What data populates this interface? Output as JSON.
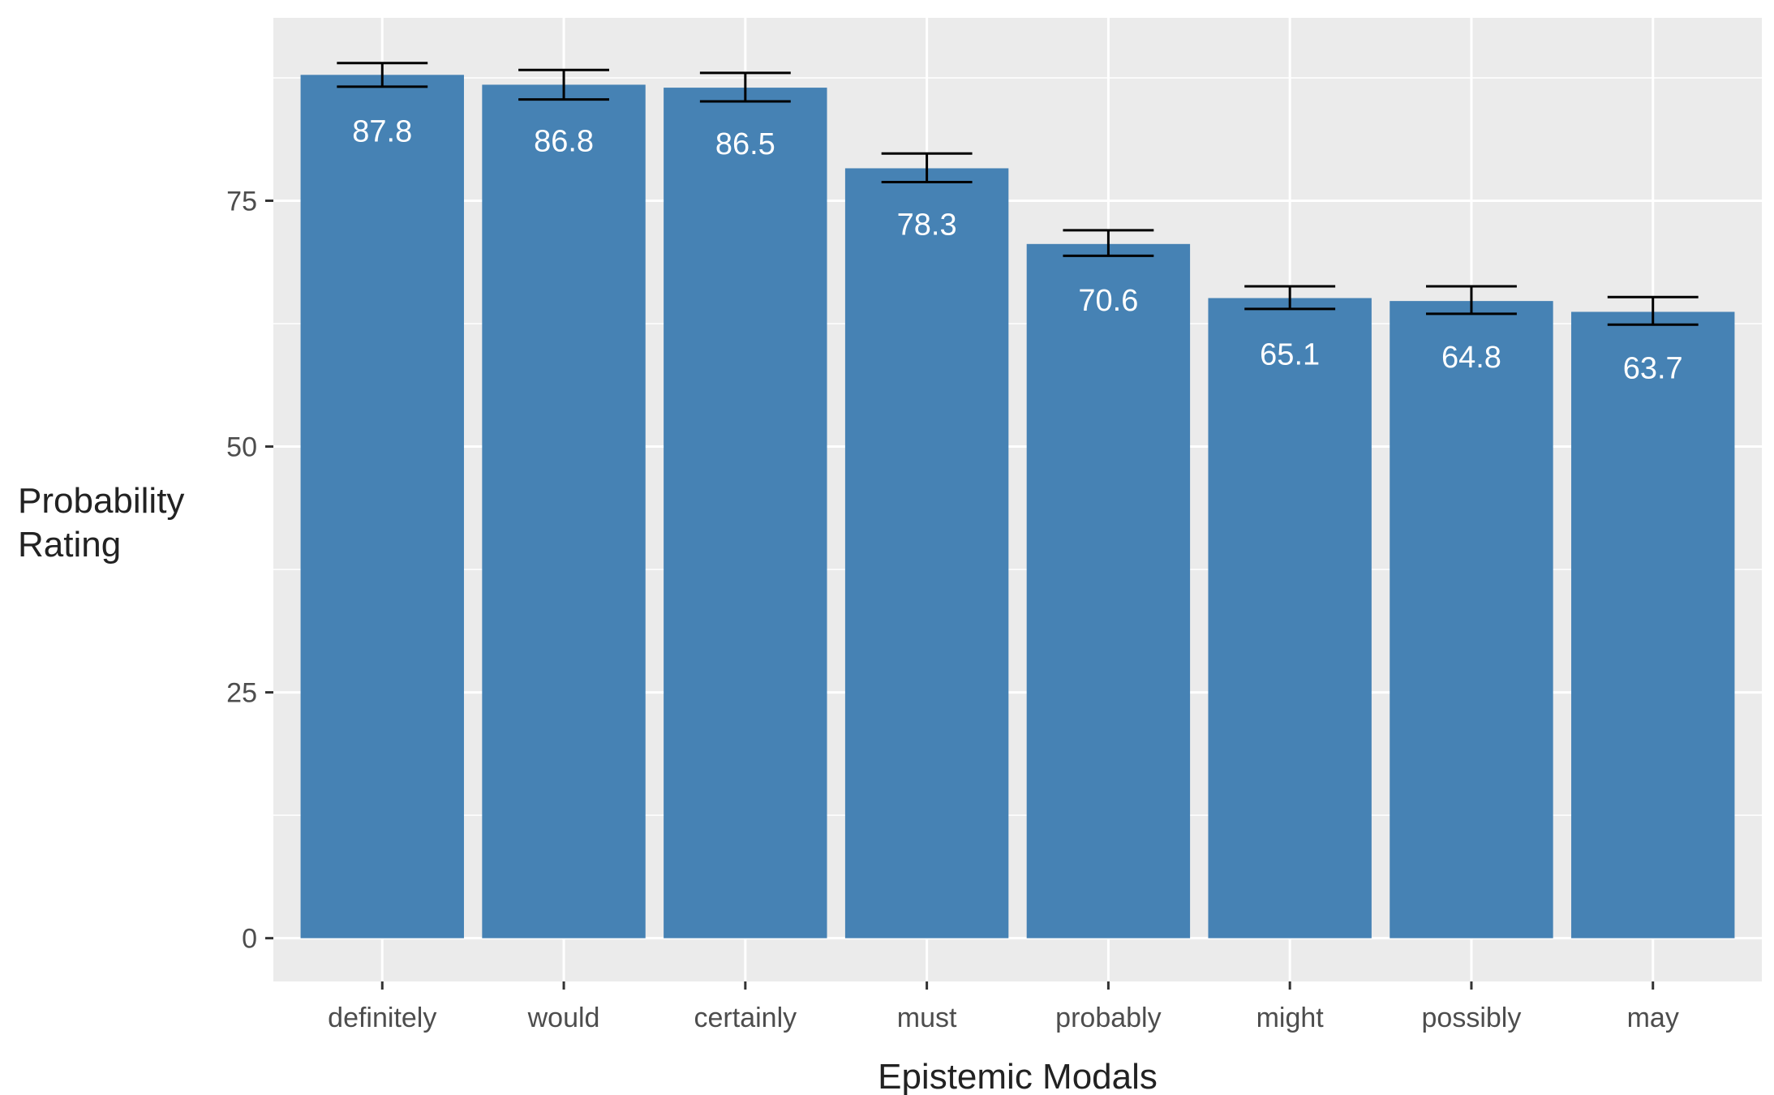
{
  "chart_data": {
    "type": "bar",
    "title": "",
    "xlabel": "Epistemic Modals",
    "ylabel_lines": [
      "Probability",
      "Rating"
    ],
    "categories": [
      "definitely",
      "would",
      "certainly",
      "must",
      "probably",
      "might",
      "possibly",
      "may"
    ],
    "values": [
      87.8,
      86.8,
      86.5,
      78.3,
      70.6,
      65.1,
      64.8,
      63.7
    ],
    "value_labels": [
      "87.8",
      "86.8",
      "86.5",
      "78.3",
      "70.6",
      "65.1",
      "64.8",
      "63.7"
    ],
    "error_low": [
      86.6,
      85.3,
      85.1,
      76.9,
      69.4,
      64.0,
      63.5,
      62.4
    ],
    "error_high": [
      89.0,
      88.3,
      88.0,
      79.8,
      72.0,
      66.3,
      66.3,
      65.2
    ],
    "yticks": [
      0,
      25,
      50,
      75
    ],
    "ytick_labels": [
      "0",
      "25",
      "50",
      "75"
    ],
    "ylim": [
      -4.4,
      93.6
    ],
    "grid": true,
    "legend": "none",
    "colors": {
      "bar": "#4682b4",
      "panel": "#ebebeb",
      "grid": "#ffffff",
      "errorbar": "#000000",
      "bar_label": "#ffffff"
    }
  }
}
